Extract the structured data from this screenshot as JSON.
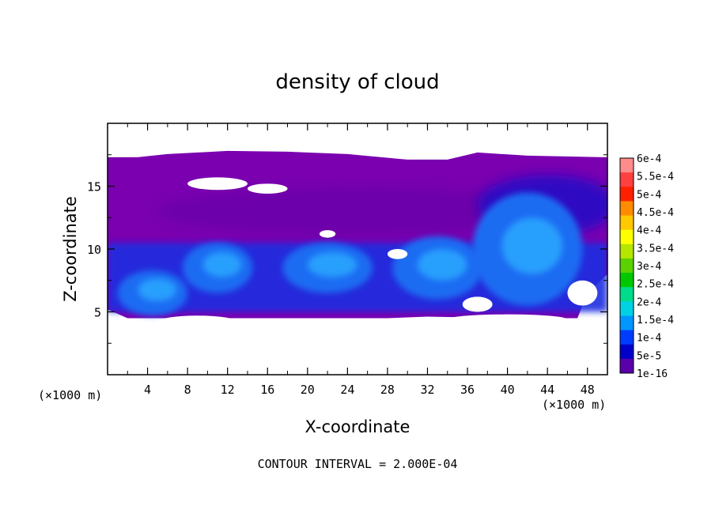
{
  "chart_data": {
    "type": "heatmap",
    "title": "density of cloud",
    "xlabel": "X-coordinate",
    "ylabel": "Z-coordinate",
    "x_unit_left": "(×1000 m)",
    "x_unit_right": "(×1000 m)",
    "xlim": [
      0,
      50
    ],
    "ylim": [
      0,
      20
    ],
    "x_ticks": [
      4,
      8,
      12,
      16,
      20,
      24,
      28,
      32,
      36,
      40,
      44,
      48
    ],
    "y_ticks": [
      5,
      10,
      15
    ],
    "footer": "CONTOUR INTERVAL = 2.000E-04",
    "colorbar": {
      "labels": [
        "6e-4",
        "5.5e-4",
        "5e-4",
        "4.5e-4",
        "4e-4",
        "3.5e-4",
        "3e-4",
        "2.5e-4",
        "2e-4",
        "1.5e-4",
        "1e-4",
        "5e-5",
        "1e-16"
      ],
      "colors": [
        "#ff8c8c",
        "#ff4040",
        "#ff2000",
        "#ff8c00",
        "#ffc800",
        "#ffff00",
        "#b4e600",
        "#5ad200",
        "#00c800",
        "#00dc8c",
        "#00d2e6",
        "#0096ff",
        "#003cff",
        "#0000c8",
        "#5a00aa"
      ]
    },
    "field": {
      "cloud_base_z": 4.5,
      "cloud_top_z": 17.3,
      "cells": [
        {
          "x": 4.5,
          "z": 6.5,
          "rx": 3.5,
          "rz": 1.8,
          "level": 0.00012
        },
        {
          "x": 11,
          "z": 8.5,
          "rx": 3.5,
          "rz": 2.0,
          "level": 0.00015
        },
        {
          "x": 22,
          "z": 8.5,
          "rx": 4.5,
          "rz": 2.0,
          "level": 0.00015
        },
        {
          "x": 33,
          "z": 8.5,
          "rx": 4.5,
          "rz": 2.5,
          "level": 0.00016
        },
        {
          "x": 42,
          "z": 10,
          "rx": 5.5,
          "rz": 4.5,
          "level": 0.00012
        }
      ]
    }
  }
}
